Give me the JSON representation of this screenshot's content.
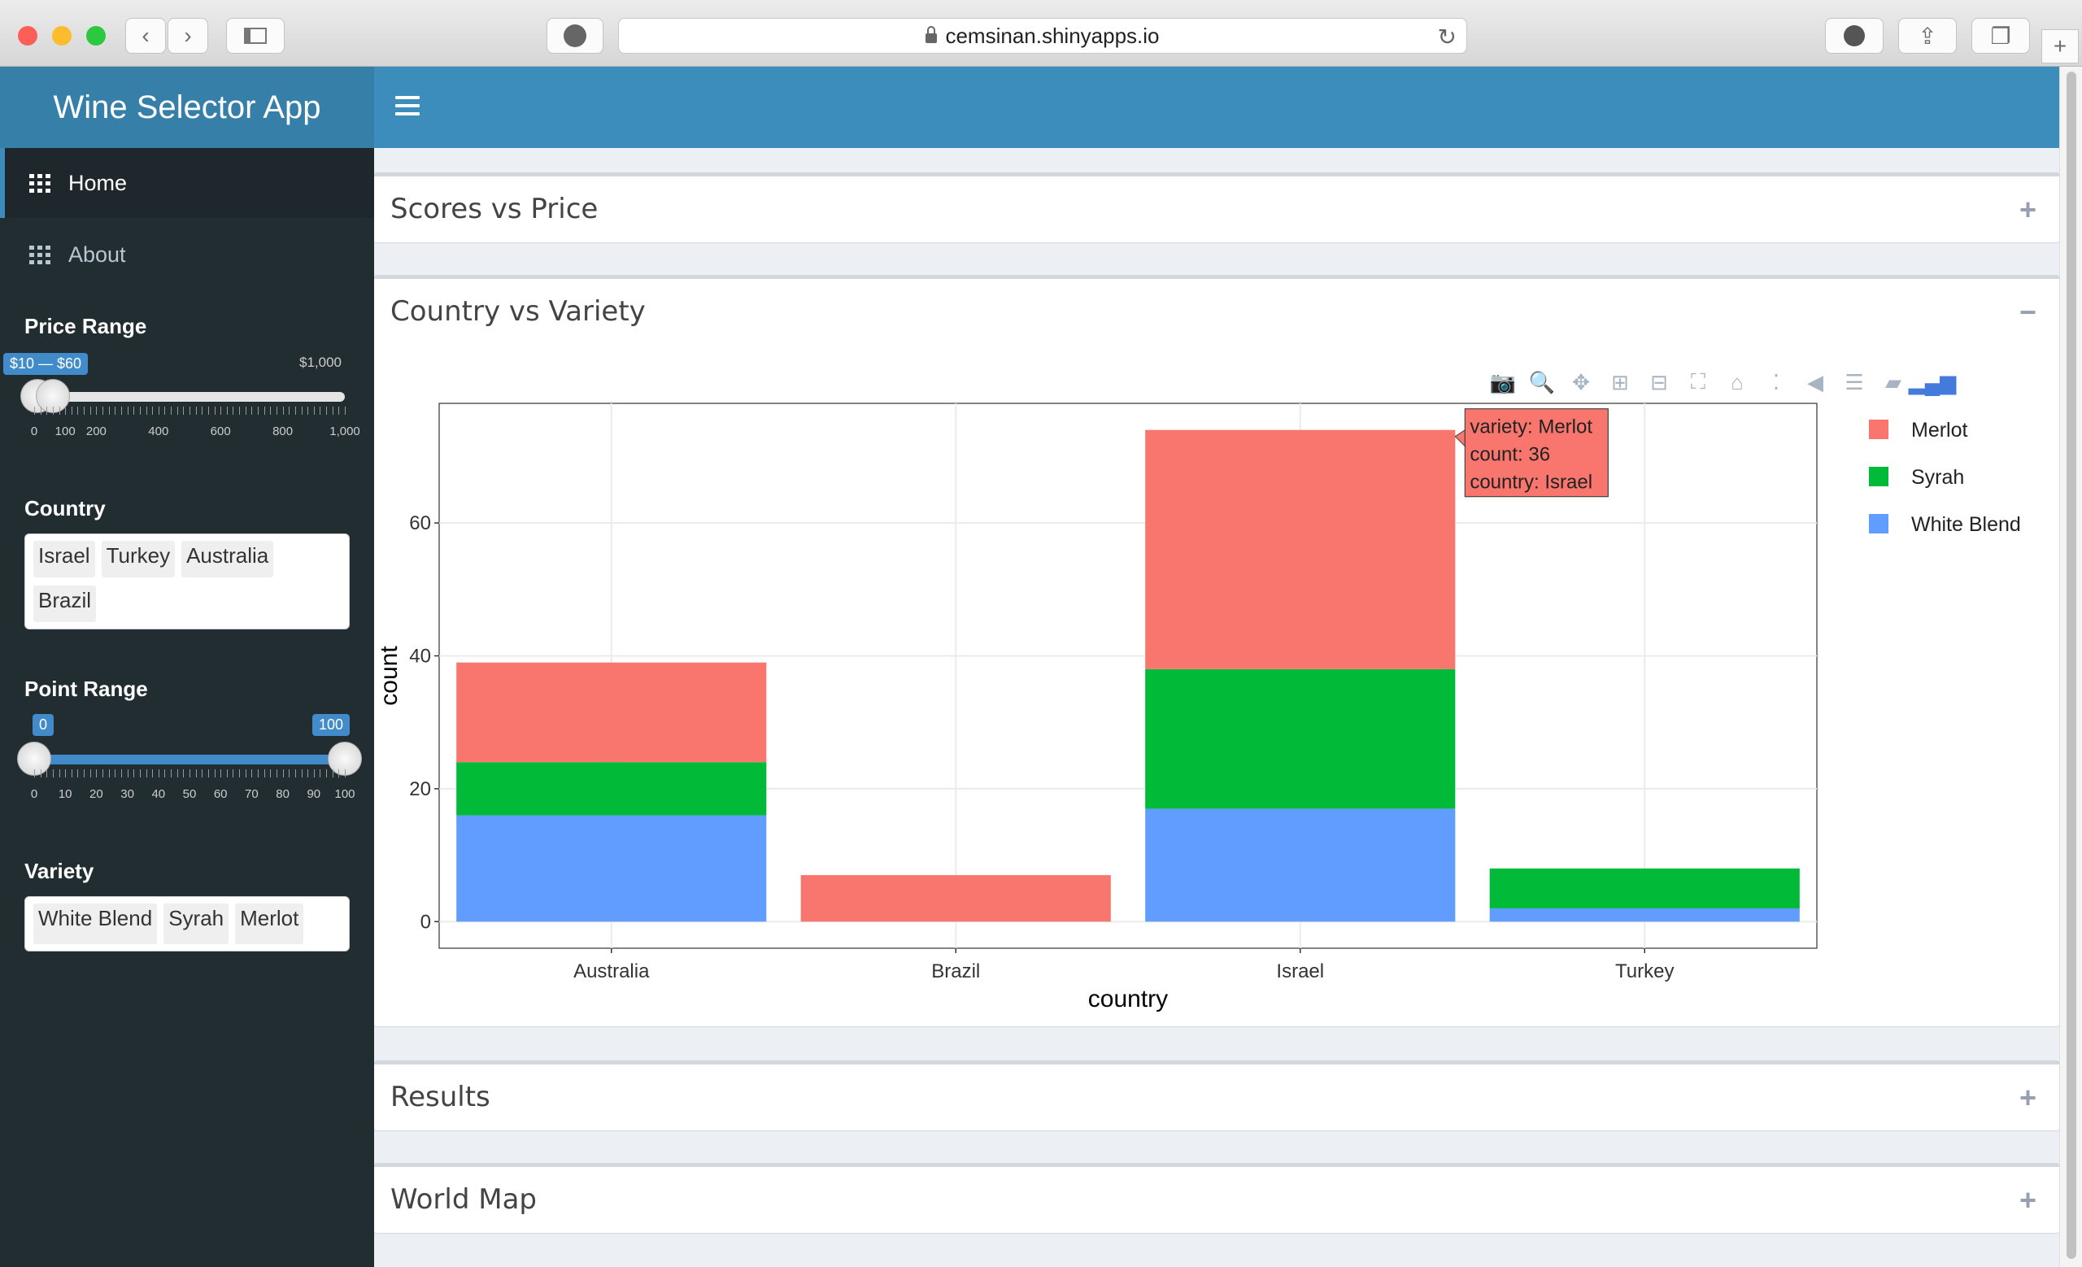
{
  "browser": {
    "url": "cemsinan.shinyapps.io"
  },
  "app": {
    "title": "Wine Selector App"
  },
  "sidebar": {
    "menu": [
      {
        "label": "Home",
        "active": true
      },
      {
        "label": "About",
        "active": false
      }
    ],
    "price_range": {
      "label": "Price Range",
      "value_badge": "$10 — $60",
      "max_label": "$1,000",
      "low": 10,
      "high": 60,
      "min": 0,
      "max": 1000,
      "ticks": [
        "0",
        "100",
        "200",
        "400",
        "600",
        "800",
        "1,000"
      ]
    },
    "country": {
      "label": "Country",
      "selected": [
        "Israel",
        "Turkey",
        "Australia",
        "Brazil"
      ]
    },
    "point_range": {
      "label": "Point Range",
      "low_badge": "0",
      "high_badge": "100",
      "low": 0,
      "high": 100,
      "ticks": [
        "0",
        "10",
        "20",
        "30",
        "40",
        "50",
        "60",
        "70",
        "80",
        "90",
        "100"
      ]
    },
    "variety": {
      "label": "Variety",
      "selected": [
        "White Blend",
        "Syrah",
        "Merlot"
      ]
    }
  },
  "boxes": {
    "scores": {
      "title": "Scores vs Price",
      "tool": "+"
    },
    "country": {
      "title": "Country vs Variety",
      "tool": "−"
    },
    "results": {
      "title": "Results",
      "tool": "+"
    },
    "map": {
      "title": "World Map",
      "tool": "+"
    }
  },
  "colors": {
    "merlot": "#F8766D",
    "syrah": "#00BA38",
    "white_blend": "#619CFF"
  },
  "chart_data": {
    "type": "bar",
    "stacked": true,
    "categories": [
      "Australia",
      "Brazil",
      "Israel",
      "Turkey"
    ],
    "series": [
      {
        "name": "White Blend",
        "values": [
          16,
          0,
          17,
          2
        ]
      },
      {
        "name": "Syrah",
        "values": [
          8,
          0,
          21,
          6
        ]
      },
      {
        "name": "Merlot",
        "values": [
          15,
          7,
          36,
          0
        ]
      }
    ],
    "xlabel": "country",
    "ylabel": "count",
    "yticks": [
      0,
      20,
      40,
      60
    ],
    "ylim": [
      -4,
      78
    ],
    "grid": true,
    "legend_position": "right",
    "tooltip": {
      "lines": [
        "variety: Merlot",
        "count: 36",
        "country: Israel"
      ],
      "category": "Israel",
      "series": "Merlot"
    }
  }
}
